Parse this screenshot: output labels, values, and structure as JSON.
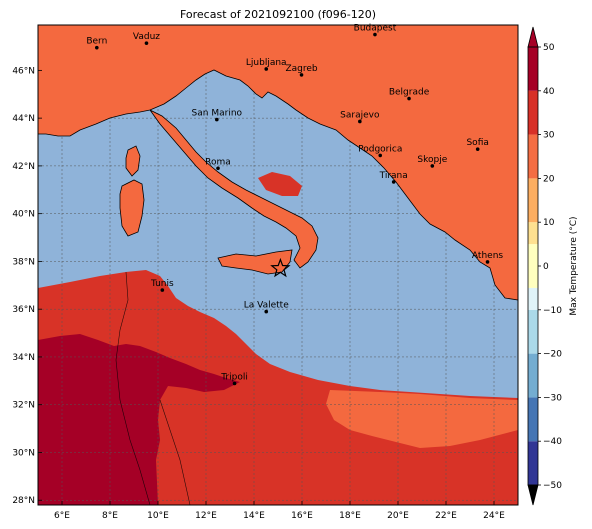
{
  "title": "Forecast of 2021092100 (f096-120)",
  "map": {
    "lon_range": [
      5,
      25
    ],
    "lat_range": [
      27.8,
      47.9
    ],
    "lon_ticks": [
      "6°E",
      "8°E",
      "10°E",
      "12°E",
      "14°E",
      "16°E",
      "18°E",
      "20°E",
      "22°E",
      "24°E"
    ],
    "lat_ticks": [
      "28°N",
      "30°N",
      "32°N",
      "34°N",
      "36°N",
      "38°N",
      "40°N",
      "42°N",
      "44°N",
      "46°N"
    ],
    "grid": true,
    "colors": {
      "sea": "#8fb3d9",
      "land_20_30": "#f4693f",
      "land_10_20": "#fcaa72",
      "land_30_40": "#d83327",
      "land_40_50": "#a50026"
    }
  },
  "cities": [
    {
      "name": "Bern",
      "lon": 7.45,
      "lat": 46.95
    },
    {
      "name": "Vaduz",
      "lon": 9.52,
      "lat": 47.14
    },
    {
      "name": "Budapest",
      "lon": 19.04,
      "lat": 47.5
    },
    {
      "name": "Ljubljana",
      "lon": 14.51,
      "lat": 46.06
    },
    {
      "name": "Zagreb",
      "lon": 15.98,
      "lat": 45.81
    },
    {
      "name": "Belgrade",
      "lon": 20.46,
      "lat": 44.82
    },
    {
      "name": "San Marino",
      "lon": 12.45,
      "lat": 43.94
    },
    {
      "name": "Sarajevo",
      "lon": 18.41,
      "lat": 43.86
    },
    {
      "name": "Sofia",
      "lon": 23.32,
      "lat": 42.7
    },
    {
      "name": "Podgorica",
      "lon": 19.26,
      "lat": 42.44
    },
    {
      "name": "Skopje",
      "lon": 21.43,
      "lat": 42.0
    },
    {
      "name": "Roma",
      "lon": 12.5,
      "lat": 41.9
    },
    {
      "name": "Tirana",
      "lon": 19.82,
      "lat": 41.33
    },
    {
      "name": "Athens",
      "lon": 23.73,
      "lat": 37.98
    },
    {
      "name": "Tunis",
      "lon": 10.18,
      "lat": 36.8
    },
    {
      "name": "La Valette",
      "lon": 14.51,
      "lat": 35.9
    },
    {
      "name": "Tripoli",
      "lon": 13.19,
      "lat": 32.89
    }
  ],
  "star": {
    "lon": 15.1,
    "lat": 37.7
  },
  "colorbar": {
    "label": "Max Temperature (°C)",
    "ticks": [
      "50",
      "40",
      "30",
      "20",
      "10",
      "0",
      "−10",
      "−20",
      "−30",
      "−40",
      "−50"
    ],
    "tick_values": [
      50,
      40,
      30,
      20,
      10,
      0,
      -10,
      -20,
      -30,
      -40,
      -50
    ],
    "range": [
      -50,
      50
    ],
    "colors": [
      "#313695",
      "#4575b4",
      "#74add1",
      "#abd9e9",
      "#e0f3f8",
      "#ffffbf",
      "#fee090",
      "#fdae61",
      "#f46d43",
      "#d73027",
      "#a50026"
    ]
  }
}
